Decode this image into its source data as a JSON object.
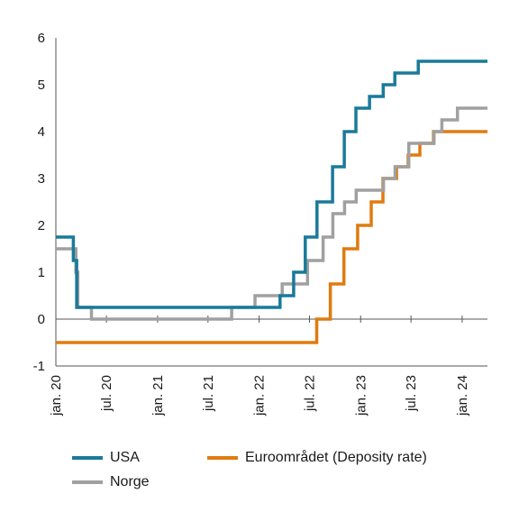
{
  "chart_data": {
    "type": "line",
    "line_style": "step",
    "title": "",
    "xlabel": "",
    "ylabel": "",
    "ylim": [
      -1,
      6
    ],
    "yticks": [
      "-1",
      "0",
      "1",
      "2",
      "3",
      "4",
      "5",
      "6"
    ],
    "xlim": [
      "2020-01-01",
      "2024-04-01"
    ],
    "xticks": [
      {
        "date": "2020-01-01",
        "label": "jan. 20"
      },
      {
        "date": "2020-07-01",
        "label": "jul. 20"
      },
      {
        "date": "2021-01-01",
        "label": "jan. 21"
      },
      {
        "date": "2021-07-01",
        "label": "jul. 21"
      },
      {
        "date": "2022-01-01",
        "label": "jan. 22"
      },
      {
        "date": "2022-07-01",
        "label": "jul. 22"
      },
      {
        "date": "2023-01-01",
        "label": "jan. 23"
      },
      {
        "date": "2023-07-01",
        "label": "jul. 23"
      },
      {
        "date": "2024-01-01",
        "label": "jan. 24"
      }
    ],
    "grid": false,
    "legend_position": "bottom",
    "series": [
      {
        "name": "USA",
        "color": "#1a7a9a",
        "points": [
          [
            "2020-01-01",
            1.75
          ],
          [
            "2020-03-04",
            1.25
          ],
          [
            "2020-03-16",
            0.25
          ],
          [
            "2022-03-17",
            0.5
          ],
          [
            "2022-05-05",
            1.0
          ],
          [
            "2022-06-16",
            1.75
          ],
          [
            "2022-07-28",
            2.5
          ],
          [
            "2022-09-22",
            3.25
          ],
          [
            "2022-11-03",
            4.0
          ],
          [
            "2022-12-15",
            4.5
          ],
          [
            "2023-02-02",
            4.75
          ],
          [
            "2023-03-23",
            5.0
          ],
          [
            "2023-05-04",
            5.25
          ],
          [
            "2023-07-27",
            5.5
          ],
          [
            "2024-04-01",
            5.5
          ]
        ]
      },
      {
        "name": "Norge",
        "color": "#a0a0a0",
        "points": [
          [
            "2020-01-01",
            1.5
          ],
          [
            "2020-03-13",
            1.0
          ],
          [
            "2020-03-20",
            0.25
          ],
          [
            "2020-05-08",
            0.0
          ],
          [
            "2021-09-24",
            0.25
          ],
          [
            "2021-12-17",
            0.5
          ],
          [
            "2022-03-25",
            0.75
          ],
          [
            "2022-06-24",
            1.25
          ],
          [
            "2022-08-19",
            1.75
          ],
          [
            "2022-09-23",
            2.25
          ],
          [
            "2022-11-04",
            2.5
          ],
          [
            "2022-12-16",
            2.75
          ],
          [
            "2023-03-24",
            3.0
          ],
          [
            "2023-05-05",
            3.25
          ],
          [
            "2023-06-23",
            3.75
          ],
          [
            "2023-09-22",
            4.0
          ],
          [
            "2023-10-20",
            4.25
          ],
          [
            "2023-12-15",
            4.5
          ],
          [
            "2024-04-01",
            4.5
          ]
        ]
      },
      {
        "name": "Euroområdet (Deposity rate)",
        "color": "#e07b10",
        "points": [
          [
            "2020-01-01",
            -0.5
          ],
          [
            "2022-07-27",
            0.0
          ],
          [
            "2022-09-14",
            0.75
          ],
          [
            "2022-11-02",
            1.5
          ],
          [
            "2022-12-21",
            2.0
          ],
          [
            "2023-02-08",
            2.5
          ],
          [
            "2023-03-22",
            3.0
          ],
          [
            "2023-05-10",
            3.25
          ],
          [
            "2023-06-21",
            3.5
          ],
          [
            "2023-08-02",
            3.75
          ],
          [
            "2023-09-20",
            4.0
          ],
          [
            "2024-04-01",
            4.0
          ]
        ]
      }
    ]
  }
}
